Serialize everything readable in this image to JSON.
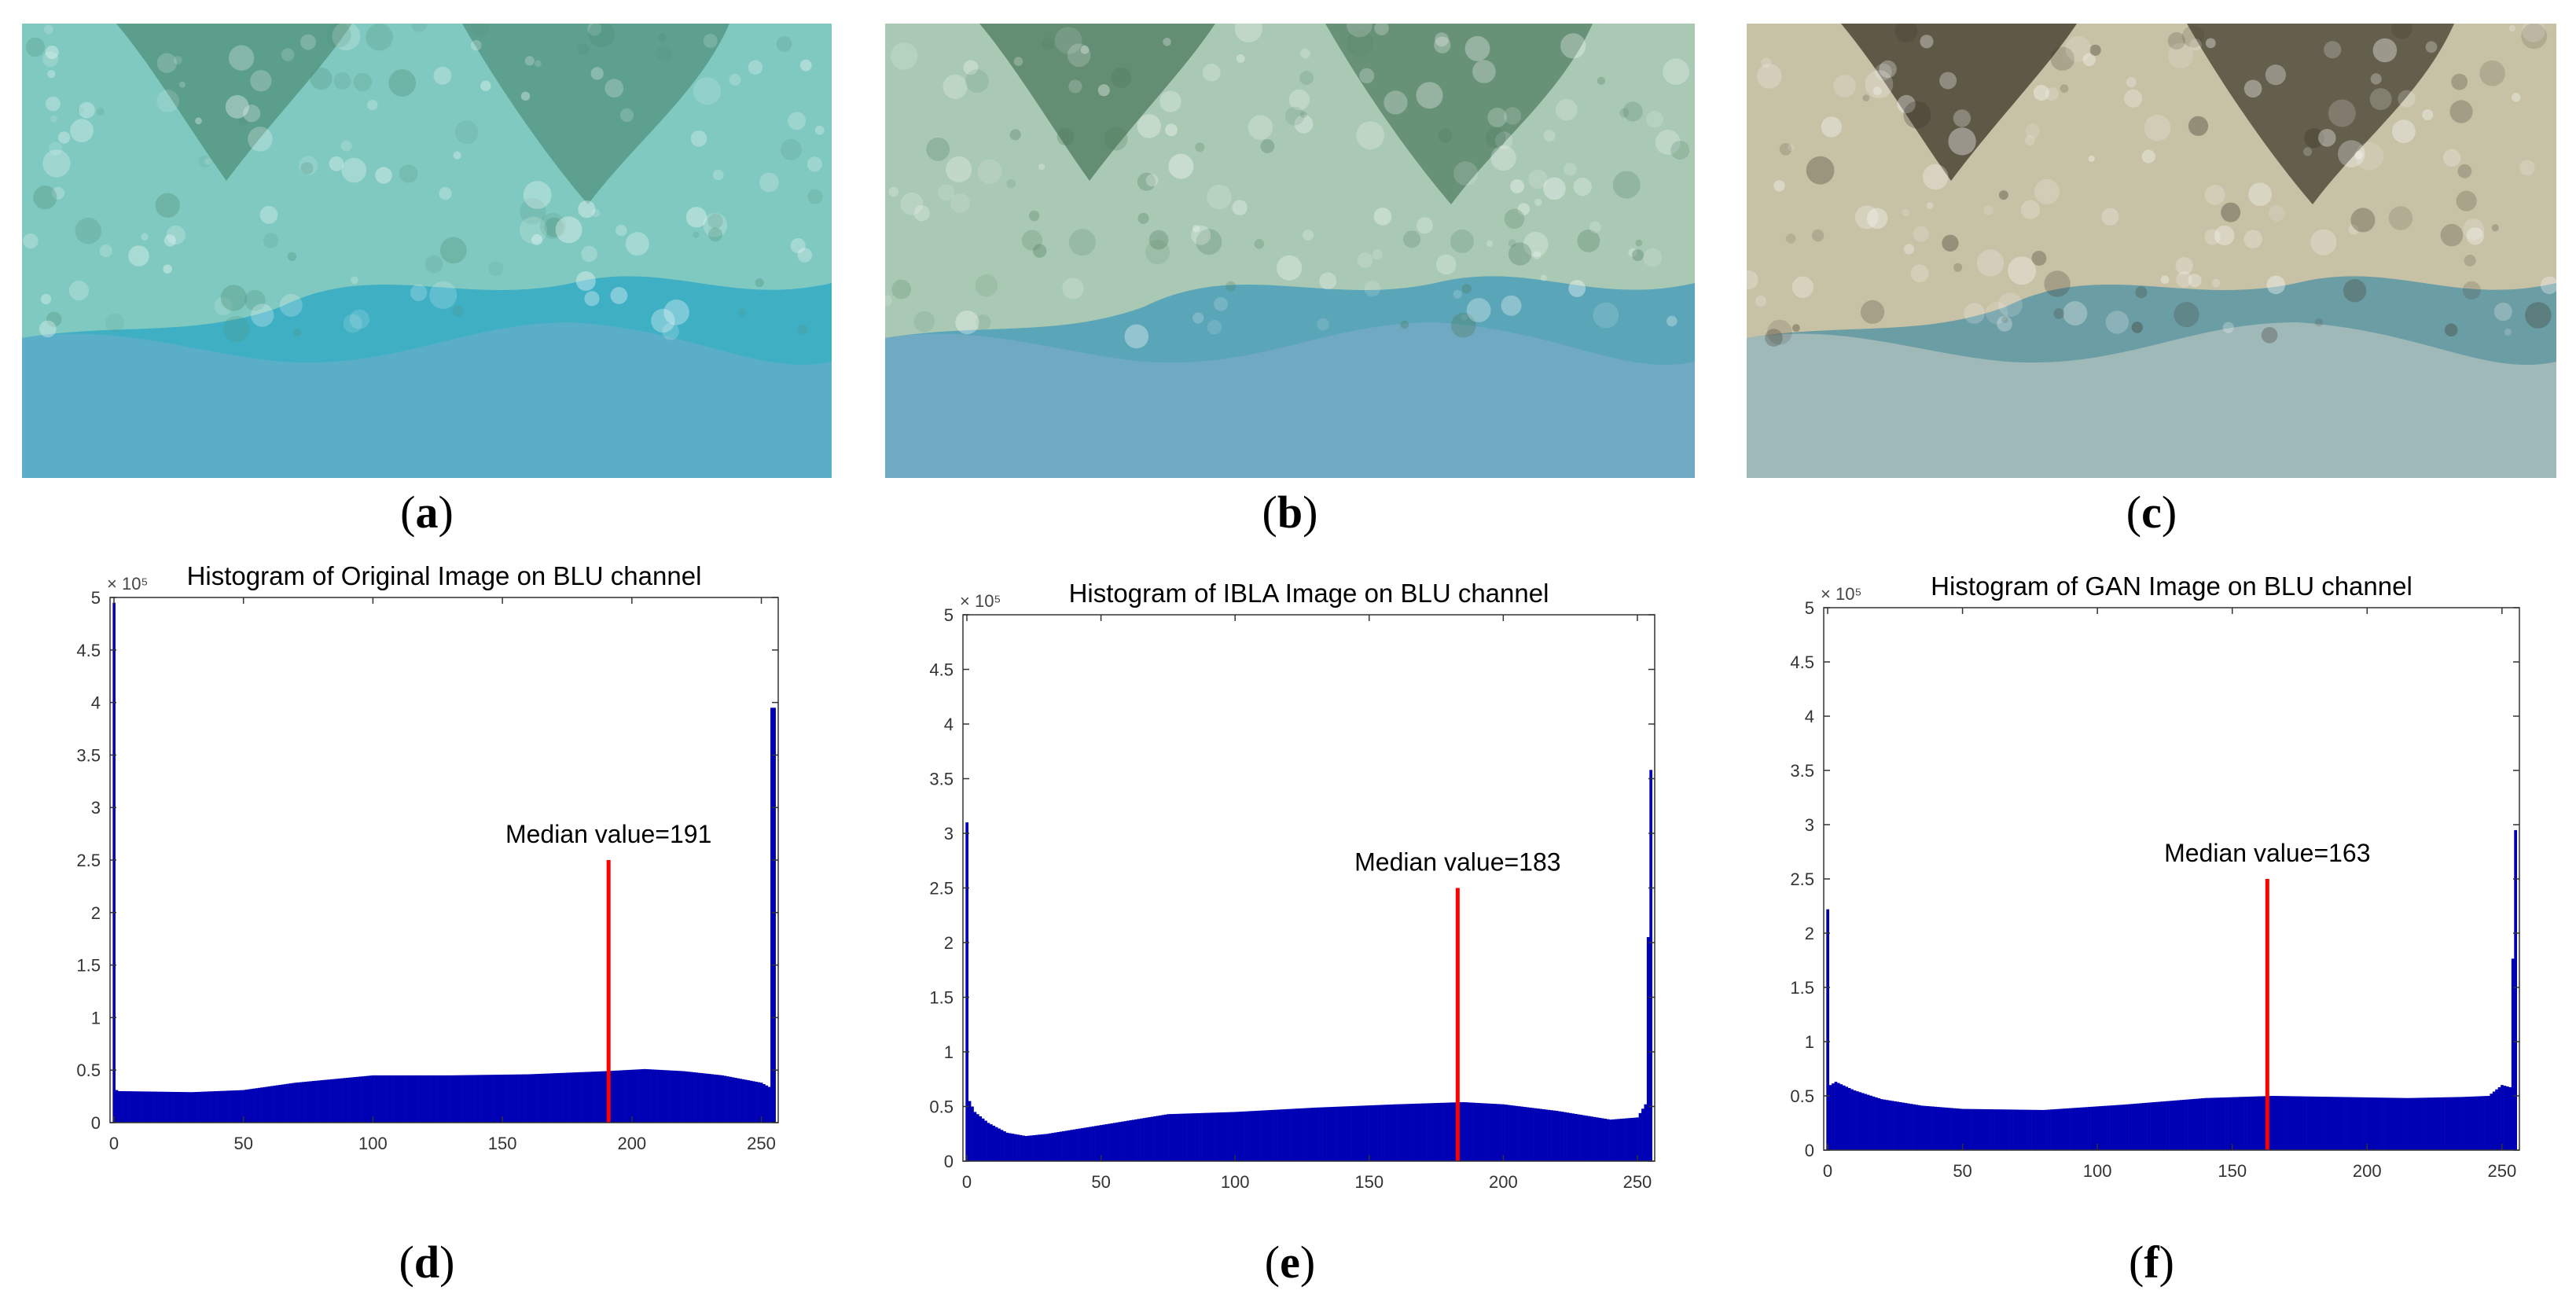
{
  "panels": [
    {
      "label": "a",
      "kind": "photo",
      "tint": "original"
    },
    {
      "label": "b",
      "kind": "photo",
      "tint": "ibla"
    },
    {
      "label": "c",
      "kind": "photo",
      "tint": "gan"
    },
    {
      "label": "d",
      "kind": "chart"
    },
    {
      "label": "e",
      "kind": "chart"
    },
    {
      "label": "f",
      "kind": "chart"
    }
  ],
  "photo_colors": {
    "original": {
      "water": "#3fb0c4",
      "rock": "#7fc9c0",
      "sand": "#5aaec8",
      "weed": "#4f8f7a"
    },
    "ibla": {
      "water": "#5aa6b8",
      "rock": "#a9c9b4",
      "sand": "#6fa9c2",
      "weed": "#4d7a5e"
    },
    "gan": {
      "water": "#6b9da4",
      "rock": "#c7c1a6",
      "sand": "#9fb8b8",
      "weed": "#3b3426"
    }
  },
  "chart_data": [
    {
      "type": "bar",
      "title": "Histogram of Original Image on BLU channel",
      "xlabel": "",
      "ylabel": "",
      "exponent_label": "× 10⁵",
      "xlim": [
        0,
        255
      ],
      "ylim": [
        0,
        5
      ],
      "x_ticks": [
        0,
        50,
        100,
        150,
        200,
        250
      ],
      "y_ticks": [
        0,
        0.5,
        1,
        1.5,
        2,
        2.5,
        3,
        3.5,
        4,
        4.5,
        5
      ],
      "y_tick_labels": [
        "0",
        "0.5",
        "1",
        "1.5",
        "2",
        "2.5",
        "3",
        "3.5",
        "4",
        "4.5",
        "5"
      ],
      "bar_color": "#0000b4",
      "profile_x": [
        0,
        1,
        2,
        30,
        50,
        70,
        100,
        130,
        160,
        190,
        205,
        220,
        235,
        250,
        253,
        254,
        255
      ],
      "profile_y": [
        4.95,
        0.31,
        0.3,
        0.29,
        0.31,
        0.38,
        0.45,
        0.45,
        0.46,
        0.49,
        0.51,
        0.49,
        0.45,
        0.38,
        0.34,
        3.95,
        3.95
      ],
      "median": {
        "value": 191,
        "label": "Median value=191",
        "line_top": 2.5,
        "color": "#ff0000"
      }
    },
    {
      "type": "bar",
      "title": "Histogram of IBLA Image on BLU channel",
      "xlabel": "",
      "ylabel": "",
      "exponent_label": "× 10⁵",
      "xlim": [
        0,
        255
      ],
      "ylim": [
        0,
        5
      ],
      "x_ticks": [
        0,
        50,
        100,
        150,
        200,
        250
      ],
      "y_ticks": [
        0,
        0.5,
        1,
        1.5,
        2,
        2.5,
        3,
        3.5,
        4,
        4.5,
        5
      ],
      "y_tick_labels": [
        "0",
        "0.5",
        "1",
        "1.5",
        "2",
        "2.5",
        "3",
        "3.5",
        "4",
        "4.5",
        "5"
      ],
      "bar_color": "#0000b4",
      "profile_x": [
        0,
        1,
        3,
        8,
        15,
        22,
        30,
        50,
        75,
        100,
        130,
        160,
        185,
        200,
        220,
        240,
        250,
        253,
        255
      ],
      "profile_y": [
        3.1,
        0.55,
        0.45,
        0.35,
        0.26,
        0.23,
        0.25,
        0.33,
        0.43,
        0.45,
        0.49,
        0.52,
        0.54,
        0.52,
        0.46,
        0.38,
        0.4,
        0.52,
        3.58
      ],
      "median": {
        "value": 183,
        "label": "Median value=183",
        "line_top": 2.5,
        "color": "#ff0000"
      }
    },
    {
      "type": "bar",
      "title": "Histogram of GAN Image on BLU channel",
      "xlabel": "",
      "ylabel": "",
      "exponent_label": "× 10⁵",
      "xlim": [
        0,
        255
      ],
      "ylim": [
        0,
        5
      ],
      "x_ticks": [
        0,
        50,
        100,
        150,
        200,
        250
      ],
      "y_ticks": [
        0,
        0.5,
        1,
        1.5,
        2,
        2.5,
        3,
        3.5,
        4,
        4.5,
        5
      ],
      "y_tick_labels": [
        "0",
        "0.5",
        "1",
        "1.5",
        "2",
        "2.5",
        "3",
        "3.5",
        "4",
        "4.5",
        "5"
      ],
      "bar_color": "#0000b4",
      "profile_x": [
        0,
        1,
        3,
        10,
        20,
        35,
        50,
        80,
        110,
        140,
        165,
        190,
        215,
        235,
        245,
        250,
        253,
        255
      ],
      "profile_y": [
        2.22,
        0.6,
        0.63,
        0.55,
        0.47,
        0.41,
        0.38,
        0.37,
        0.42,
        0.48,
        0.5,
        0.49,
        0.48,
        0.49,
        0.5,
        0.6,
        0.58,
        2.95
      ],
      "median": {
        "value": 163,
        "label": "Median value=163",
        "line_top": 2.5,
        "color": "#ff0000"
      }
    }
  ]
}
